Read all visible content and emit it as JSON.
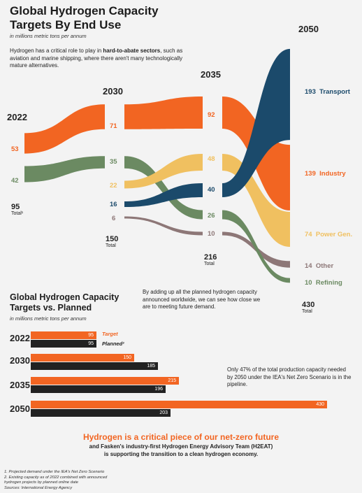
{
  "title": "Global Hydrogen Capacity Targets By End Use",
  "subtitle": "in millions metric tons per annum",
  "intro": {
    "pre": "Hydrogen has a critical role to play in ",
    "bold": "hard-to-abate sectors",
    "post": ", such as aviation and marine shipping, where there aren't many technologically mature alternatives."
  },
  "colors": {
    "transport": "#1b4a6b",
    "industry": "#f26522",
    "power": "#f0c060",
    "other": "#8d7777",
    "refining": "#6b8a62",
    "target": "#f26522",
    "planned": "#222222"
  },
  "chart_data": [
    {
      "type": "sankey",
      "title": "Global Hydrogen Capacity Targets By End Use",
      "unit": "in millions metric tons per annum",
      "years": [
        "2022",
        "2030",
        "2035",
        "2050"
      ],
      "series": [
        {
          "name": "Transport",
          "values": [
            0,
            16,
            40,
            193
          ]
        },
        {
          "name": "Industry",
          "values": [
            53,
            71,
            92,
            139
          ]
        },
        {
          "name": "Power Gen.",
          "values": [
            0,
            22,
            48,
            74
          ]
        },
        {
          "name": "Other",
          "values": [
            0,
            6,
            10,
            14
          ]
        },
        {
          "name": "Refining",
          "values": [
            42,
            35,
            26,
            10
          ]
        }
      ],
      "totals": [
        "95",
        "150",
        "216",
        "430"
      ],
      "total_label": "Total",
      "total_2022_label": "Total¹"
    },
    {
      "type": "bar",
      "title": "Global Hydrogen Capacity Targets vs. Planned",
      "unit": "in millions metric tons per annum",
      "categories": [
        "2022",
        "2030",
        "2035",
        "2050"
      ],
      "series": [
        {
          "name": "Target",
          "values": [
            95,
            150,
            215,
            430
          ]
        },
        {
          "name": "Planned²",
          "values": [
            95,
            185,
            196,
            203
          ]
        }
      ]
    }
  ],
  "sankey_labels": {
    "l2022": {
      "industry": "53",
      "refining": "42"
    },
    "l2030": {
      "industry": "71",
      "refining": "35",
      "power": "22",
      "transport": "16",
      "other": "6"
    },
    "l2035": {
      "industry": "92",
      "power": "48",
      "transport": "40",
      "refining": "26",
      "other": "10"
    },
    "l2050": {
      "transport": "193",
      "industry": "139",
      "power": "74",
      "other": "14",
      "refining": "10"
    },
    "names": {
      "transport": "Transport",
      "industry": "Industry",
      "power": "Power Gen.",
      "other": "Other",
      "refining": "Refining"
    }
  },
  "bars": {
    "title": "Global Hydrogen Capacity Targets vs. Planned",
    "unit": "in millions metric tons per annum",
    "blurb": "By adding up all the planned hydrogen capacity announced worldwide, we can see how close we are to meeting future demand.",
    "note": "Only 47% of the total production capacity needed by 2050 under the IEA's Net Zero Scenario is in the pipeline.",
    "legend_target": "Target",
    "legend_planned": "Planned²"
  },
  "cta": {
    "headline": "Hydrogen is a critical piece of our net-zero future",
    "line1": "and Fasken's industry-first Hydrogen Energy Advisory Team (H2EAT)",
    "line2": "is supporting the transition to a clean hydrogen economy."
  },
  "footnotes": {
    "f1": "1. Projected demand under the IEA's Net Zero Scenario",
    "f2": "2. Existing capacity as of 2022 combined with announced",
    "f2b": "hydrogen projects by planned online date",
    "f3": "Sources: International Energy Agency"
  }
}
